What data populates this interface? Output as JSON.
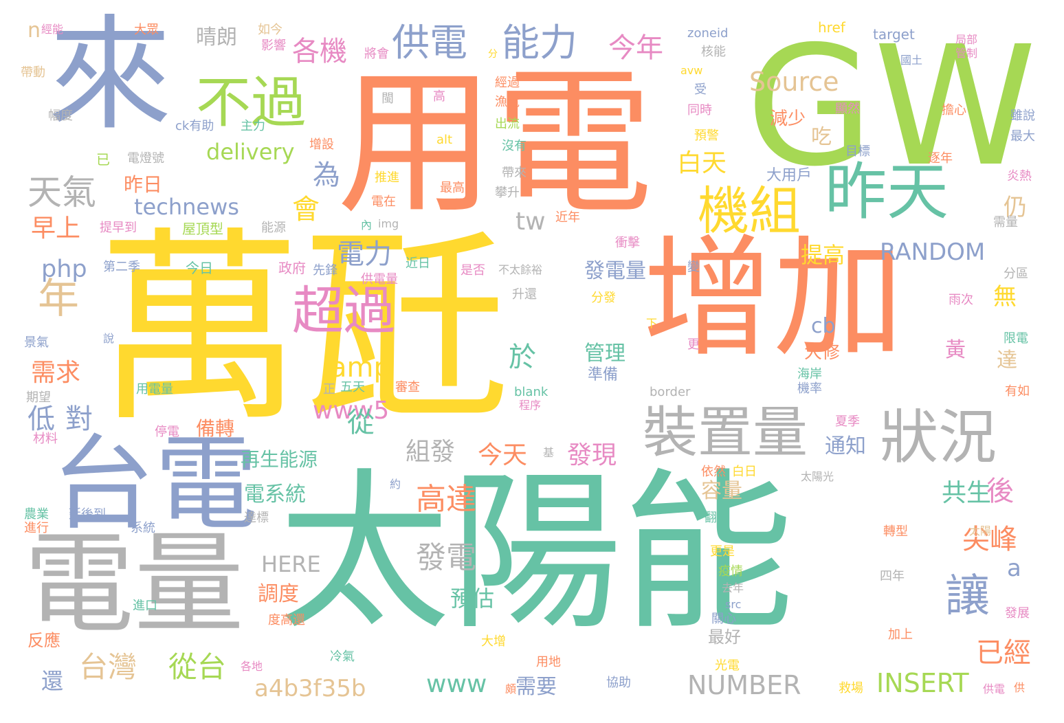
{
  "palette": {
    "green": "#66c2a5",
    "orange": "#fc8d62",
    "blue": "#8da0cb",
    "pink": "#e78ac3",
    "lime": "#a6d854",
    "yellow": "#ffd92f",
    "tan": "#e5c494",
    "gray": "#b3b3b3"
  },
  "words": [
    {
      "text": "太陽能",
      "color": "green"
    },
    {
      "text": "萬瓩",
      "color": "yellow"
    },
    {
      "text": "用電",
      "color": "orange"
    },
    {
      "text": "GW",
      "color": "lime"
    },
    {
      "text": "增加",
      "color": "orange"
    },
    {
      "text": "來",
      "color": "blue"
    },
    {
      "text": "台電",
      "color": "blue"
    },
    {
      "text": "電量",
      "color": "gray"
    },
    {
      "text": "昨天",
      "color": "green"
    },
    {
      "text": "機組",
      "color": "yellow"
    },
    {
      "text": "狀況",
      "color": "gray"
    },
    {
      "text": "裝置量",
      "color": "gray"
    },
    {
      "text": "超過",
      "color": "pink"
    },
    {
      "text": "不過",
      "color": "lime"
    },
    {
      "text": "供電",
      "color": "blue"
    },
    {
      "text": "能力",
      "color": "blue"
    },
    {
      "text": "讓",
      "color": "blue"
    },
    {
      "text": "年",
      "color": "tan"
    },
    {
      "text": "天氣",
      "color": "gray"
    },
    {
      "text": "今年",
      "color": "pink"
    },
    {
      "text": "各機",
      "color": "pink"
    },
    {
      "text": "晴朗",
      "color": "gray"
    },
    {
      "text": "Source",
      "color": "tan"
    },
    {
      "text": "delivery",
      "color": "lime"
    },
    {
      "text": "technews",
      "color": "blue"
    },
    {
      "text": "白天",
      "color": "yellow"
    },
    {
      "text": "為",
      "color": "blue"
    },
    {
      "text": "會",
      "color": "yellow"
    },
    {
      "text": "amp",
      "color": "yellow"
    },
    {
      "text": "tw",
      "color": "gray"
    },
    {
      "text": "電力",
      "color": "blue"
    },
    {
      "text": "php",
      "color": "blue"
    },
    {
      "text": "RANDOM",
      "color": "blue"
    },
    {
      "text": "早上",
      "color": "orange"
    },
    {
      "text": "昨日",
      "color": "orange"
    },
    {
      "text": "發電量",
      "color": "blue"
    },
    {
      "text": "提高",
      "color": "yellow"
    },
    {
      "text": "www5",
      "color": "pink"
    },
    {
      "text": "cb",
      "color": "blue"
    },
    {
      "text": "需求",
      "color": "orange"
    },
    {
      "text": "對",
      "color": "blue"
    },
    {
      "text": "低",
      "color": "blue"
    },
    {
      "text": "從",
      "color": "green"
    },
    {
      "text": "於",
      "color": "green"
    },
    {
      "text": "組發",
      "color": "gray"
    },
    {
      "text": "管理",
      "color": "green"
    },
    {
      "text": "準備",
      "color": "blue"
    },
    {
      "text": "備轉",
      "color": "orange"
    },
    {
      "text": "再生能源",
      "color": "green"
    },
    {
      "text": "今天",
      "color": "orange"
    },
    {
      "text": "發現",
      "color": "pink"
    },
    {
      "text": "高達",
      "color": "orange"
    },
    {
      "text": "電系統",
      "color": "green"
    },
    {
      "text": "容量",
      "color": "tan"
    },
    {
      "text": "共生",
      "color": "green"
    },
    {
      "text": "後",
      "color": "pink"
    },
    {
      "text": "尖峰",
      "color": "orange"
    },
    {
      "text": "HERE",
      "color": "gray"
    },
    {
      "text": "發電",
      "color": "gray"
    },
    {
      "text": "調度",
      "color": "orange"
    },
    {
      "text": "預估",
      "color": "green"
    },
    {
      "text": "台灣",
      "color": "tan"
    },
    {
      "text": "從台",
      "color": "lime"
    },
    {
      "text": "a4b3f35b",
      "color": "tan"
    },
    {
      "text": "www",
      "color": "green"
    },
    {
      "text": "需要",
      "color": "blue"
    },
    {
      "text": "NUMBER",
      "color": "gray"
    },
    {
      "text": "INSERT",
      "color": "lime"
    },
    {
      "text": "已經",
      "color": "orange"
    },
    {
      "text": "通知",
      "color": "blue"
    },
    {
      "text": "大修",
      "color": "orange"
    },
    {
      "text": "黃",
      "color": "pink"
    },
    {
      "text": "達",
      "color": "tan"
    },
    {
      "text": "a",
      "color": "blue"
    },
    {
      "text": "無",
      "color": "yellow"
    },
    {
      "text": "仍",
      "color": "tan"
    },
    {
      "text": "吃",
      "color": "tan"
    },
    {
      "text": "減少",
      "color": "orange"
    },
    {
      "text": "大用戶",
      "color": "blue"
    },
    {
      "text": "最好",
      "color": "gray"
    },
    {
      "text": "還",
      "color": "blue"
    },
    {
      "text": "反應",
      "color": "orange"
    },
    {
      "text": "n",
      "color": "tan"
    },
    {
      "text": "經能",
      "color": "pink"
    },
    {
      "text": "大眾",
      "color": "orange"
    },
    {
      "text": "如今",
      "color": "tan"
    },
    {
      "text": "影響",
      "color": "pink"
    },
    {
      "text": "將會",
      "color": "pink"
    },
    {
      "text": "分",
      "color": "yellow"
    },
    {
      "text": "zoneid",
      "color": "blue"
    },
    {
      "text": "核能",
      "color": "gray"
    },
    {
      "text": "href",
      "color": "yellow"
    },
    {
      "text": "target",
      "color": "blue"
    },
    {
      "text": "局部",
      "color": "pink"
    },
    {
      "text": "管制",
      "color": "pink"
    },
    {
      "text": "國土",
      "color": "blue"
    },
    {
      "text": "帶動",
      "color": "tan"
    },
    {
      "text": "幅度",
      "color": "gray"
    },
    {
      "text": "ck有助",
      "color": "blue"
    },
    {
      "text": "主力",
      "color": "green"
    },
    {
      "text": "已",
      "color": "lime"
    },
    {
      "text": "電燈號",
      "color": "gray"
    },
    {
      "text": "提早到",
      "color": "pink"
    },
    {
      "text": "屋頂型",
      "color": "lime"
    },
    {
      "text": "能源",
      "color": "gray"
    },
    {
      "text": "第二季",
      "color": "blue"
    },
    {
      "text": "今日",
      "color": "green"
    },
    {
      "text": "政府",
      "color": "pink"
    },
    {
      "text": "先鋒",
      "color": "blue"
    },
    {
      "text": "供電量",
      "color": "pink"
    },
    {
      "text": "近日",
      "color": "green"
    },
    {
      "text": "是否",
      "color": "pink"
    },
    {
      "text": "不太餘裕",
      "color": "gray"
    },
    {
      "text": "衝擊",
      "color": "pink"
    },
    {
      "text": "升還",
      "color": "gray"
    },
    {
      "text": "分發",
      "color": "yellow"
    },
    {
      "text": "景氣",
      "color": "blue"
    },
    {
      "text": "說",
      "color": "blue"
    },
    {
      "text": "期望",
      "color": "gray"
    },
    {
      "text": "用電量",
      "color": "green"
    },
    {
      "text": "正",
      "color": "gray"
    },
    {
      "text": "五天",
      "color": "green"
    },
    {
      "text": "審查",
      "color": "orange"
    },
    {
      "text": "blank",
      "color": "green"
    },
    {
      "text": "程序",
      "color": "pink"
    },
    {
      "text": "border",
      "color": "gray"
    },
    {
      "text": "停電",
      "color": "pink"
    },
    {
      "text": "材料",
      "color": "pink"
    },
    {
      "text": "農業",
      "color": "green"
    },
    {
      "text": "進行",
      "color": "orange"
    },
    {
      "text": "延後到",
      "color": "blue"
    },
    {
      "text": "系統",
      "color": "blue"
    },
    {
      "text": "達標",
      "color": "gray"
    },
    {
      "text": "閩",
      "color": "gray"
    },
    {
      "text": "高",
      "color": "pink"
    },
    {
      "text": "經過",
      "color": "orange"
    },
    {
      "text": "漁電",
      "color": "orange"
    },
    {
      "text": "出流",
      "color": "lime"
    },
    {
      "text": "alt",
      "color": "yellow"
    },
    {
      "text": "沒有",
      "color": "green"
    },
    {
      "text": "增設",
      "color": "orange"
    },
    {
      "text": "推進",
      "color": "yellow"
    },
    {
      "text": "最高",
      "color": "orange"
    },
    {
      "text": "帶來",
      "color": "gray"
    },
    {
      "text": "攀升",
      "color": "gray"
    },
    {
      "text": "電在",
      "color": "orange"
    },
    {
      "text": "內",
      "color": "green"
    },
    {
      "text": "img",
      "color": "gray"
    },
    {
      "text": "近年",
      "color": "orange"
    },
    {
      "text": "avw",
      "color": "yellow"
    },
    {
      "text": "受",
      "color": "blue"
    },
    {
      "text": "同時",
      "color": "pink"
    },
    {
      "text": "預警",
      "color": "yellow"
    },
    {
      "text": "顯然",
      "color": "pink"
    },
    {
      "text": "擔心",
      "color": "orange"
    },
    {
      "text": "目標",
      "color": "blue"
    },
    {
      "text": "雖說",
      "color": "blue"
    },
    {
      "text": "最大",
      "color": "blue"
    },
    {
      "text": "逐年",
      "color": "orange"
    },
    {
      "text": "炎熱",
      "color": "pink"
    },
    {
      "text": "需量",
      "color": "gray"
    },
    {
      "text": "分區",
      "color": "gray"
    },
    {
      "text": "變",
      "color": "blue"
    },
    {
      "text": "雨次",
      "color": "pink"
    },
    {
      "text": "下",
      "color": "yellow"
    },
    {
      "text": "更",
      "color": "pink"
    },
    {
      "text": "限電",
      "color": "green"
    },
    {
      "text": "海岸",
      "color": "green"
    },
    {
      "text": "機率",
      "color": "blue"
    },
    {
      "text": "有如",
      "color": "orange"
    },
    {
      "text": "夏季",
      "color": "pink"
    },
    {
      "text": "基",
      "color": "gray"
    },
    {
      "text": "約",
      "color": "blue"
    },
    {
      "text": "太陽光",
      "color": "gray"
    },
    {
      "text": "依然",
      "color": "orange"
    },
    {
      "text": "白日",
      "color": "yellow"
    },
    {
      "text": "翻倍",
      "color": "green"
    },
    {
      "text": "太陽",
      "color": "tan"
    },
    {
      "text": "轉型",
      "color": "orange"
    },
    {
      "text": "更是",
      "color": "yellow"
    },
    {
      "text": "疫情",
      "color": "lime"
    },
    {
      "text": "去年",
      "color": "gray"
    },
    {
      "text": "src",
      "color": "blue"
    },
    {
      "text": "四年",
      "color": "gray"
    },
    {
      "text": "關心",
      "color": "blue"
    },
    {
      "text": "發展",
      "color": "pink"
    },
    {
      "text": "進口",
      "color": "green"
    },
    {
      "text": "度高還",
      "color": "orange"
    },
    {
      "text": "冷氣",
      "color": "green"
    },
    {
      "text": "大增",
      "color": "yellow"
    },
    {
      "text": "加上",
      "color": "orange"
    },
    {
      "text": "各地",
      "color": "pink"
    },
    {
      "text": "用地",
      "color": "orange"
    },
    {
      "text": "光電",
      "color": "yellow"
    },
    {
      "text": "頗",
      "color": "orange"
    },
    {
      "text": "協助",
      "color": "blue"
    },
    {
      "text": "救場",
      "color": "yellow"
    },
    {
      "text": "供電",
      "color": "pink"
    },
    {
      "text": "供",
      "color": "orange"
    }
  ]
}
